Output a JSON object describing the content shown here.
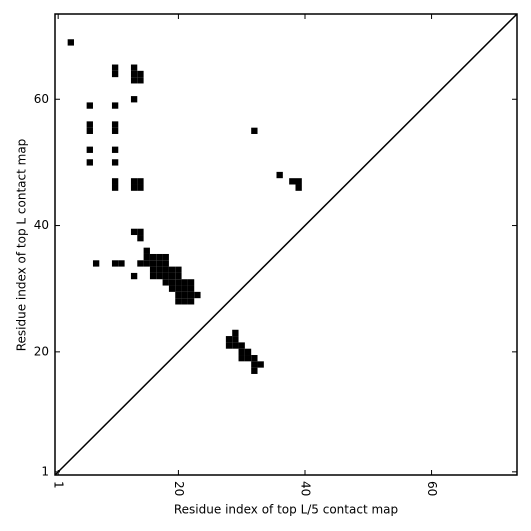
{
  "chart_data": {
    "type": "scatter",
    "xlabel": "Residue index of top L/5 contact map",
    "ylabel": "Residue index of top L contact map",
    "xlim": [
      0.5,
      73.5
    ],
    "ylim": [
      0.5,
      73.5
    ],
    "xticks": [
      1,
      20,
      40,
      60
    ],
    "yticks": [
      1,
      20,
      40,
      60
    ],
    "diagonal": true,
    "series": [
      {
        "color": "#000000",
        "x": [
          3,
          10,
          10,
          13,
          13,
          14,
          13,
          14,
          13,
          6,
          10,
          6,
          6,
          10,
          10,
          32,
          6,
          10,
          6,
          10,
          36,
          10,
          10,
          13,
          14,
          13,
          14,
          38,
          39,
          39,
          13,
          14,
          14,
          7,
          10,
          11,
          13,
          15,
          15,
          16,
          17,
          18,
          14,
          15,
          16,
          17,
          18,
          16,
          17,
          18,
          19,
          20,
          16,
          17,
          18,
          19,
          20,
          18,
          19,
          20,
          21,
          22,
          19,
          20,
          21,
          22,
          20,
          21,
          22,
          23,
          20,
          21,
          22,
          29,
          28,
          29,
          28,
          29,
          30,
          30,
          31,
          30,
          31,
          32,
          32,
          33,
          32
        ],
        "y": [
          69,
          65,
          64,
          65,
          64,
          64,
          63,
          63,
          60,
          59,
          59,
          56,
          55,
          56,
          55,
          55,
          52,
          52,
          50,
          50,
          48,
          47,
          46,
          47,
          47,
          46,
          46,
          47,
          47,
          46,
          39,
          39,
          38,
          34,
          34,
          34,
          32,
          36,
          35,
          35,
          35,
          35,
          34,
          34,
          34,
          34,
          34,
          33,
          33,
          33,
          33,
          33,
          32,
          32,
          32,
          32,
          32,
          31,
          31,
          31,
          31,
          31,
          30,
          30,
          30,
          30,
          29,
          29,
          29,
          29,
          28,
          28,
          28,
          23,
          22,
          22,
          21,
          21,
          21,
          20,
          20,
          19,
          19,
          19,
          18,
          18,
          17
        ]
      }
    ]
  }
}
